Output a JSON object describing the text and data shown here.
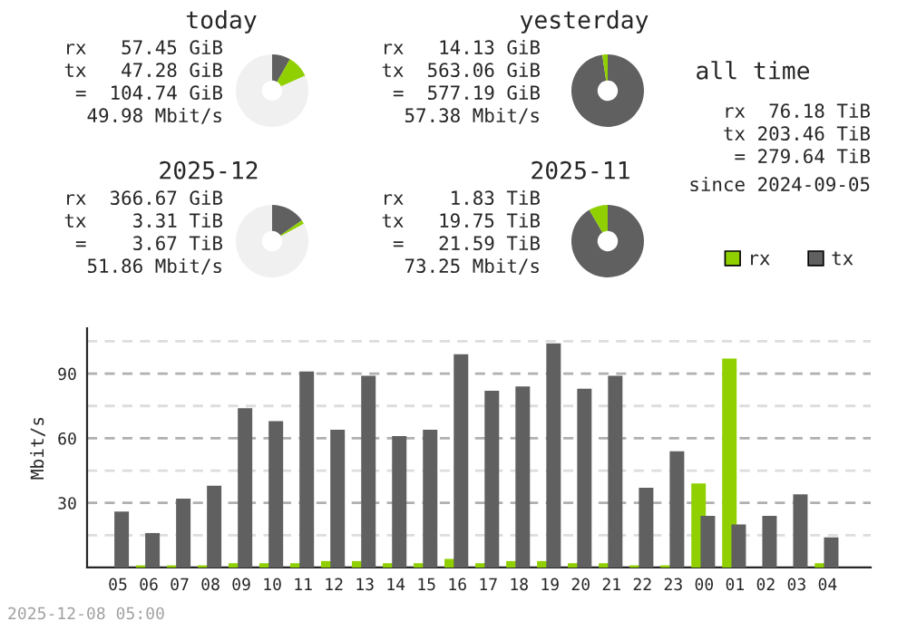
{
  "chart_data": [
    {
      "type": "donut",
      "title": "today",
      "categories": [
        null,
        null,
        null
      ],
      "values": [
        8.2,
        10.0,
        81.8
      ],
      "colors": [
        "#606060",
        "#90d000",
        "#f0f0f0"
      ],
      "annotations": [
        "rx 57.45 GiB",
        "tx 47.28 GiB",
        "= 104.74 GiB",
        "49.98 Mbit/s"
      ]
    },
    {
      "type": "donut",
      "title": "yesterday",
      "categories": [
        null,
        null
      ],
      "values": [
        97.6,
        2.4
      ],
      "colors": [
        "#606060",
        "#90d000"
      ],
      "annotations": [
        "rx 14.13 GiB",
        "tx 563.06 GiB",
        "= 577.19 GiB",
        "57.38 Mbit/s"
      ]
    },
    {
      "type": "donut",
      "title": "2025-12",
      "categories": [
        null,
        null,
        null
      ],
      "values": [
        15.3,
        1.7,
        83.0
      ],
      "colors": [
        "#606060",
        "#90d000",
        "#f0f0f0"
      ],
      "annotations": [
        "rx 366.67 GiB",
        "tx 3.31 TiB",
        "= 3.67 TiB",
        "51.86 Mbit/s"
      ]
    },
    {
      "type": "donut",
      "title": "2025-11",
      "categories": [
        null,
        null
      ],
      "values": [
        91.5,
        8.5
      ],
      "colors": [
        "#606060",
        "#90d000"
      ],
      "annotations": [
        "rx 1.83 TiB",
        "tx 19.75 TiB",
        "= 21.59 TiB",
        "73.25 Mbit/s"
      ]
    },
    {
      "type": "other",
      "title": "all time",
      "annotations": [
        "rx 76.18 TiB",
        "tx 203.46 TiB",
        "= 279.64 TiB",
        "since 2024-09-05"
      ]
    },
    {
      "type": "bar",
      "ylabel": "Mbit/s",
      "categories": [
        "05",
        "06",
        "07",
        "08",
        "09",
        "10",
        "11",
        "12",
        "13",
        "14",
        "15",
        "16",
        "17",
        "18",
        "19",
        "20",
        "21",
        "22",
        "23",
        "00",
        "01",
        "02",
        "03",
        "04"
      ],
      "series": [
        {
          "name": "rx",
          "color": "#90d000",
          "values": [
            0,
            1,
            1,
            1,
            2,
            2,
            2,
            3,
            3,
            2,
            2,
            4,
            2,
            3,
            3,
            2,
            2,
            1,
            1,
            39,
            97,
            0,
            0,
            2
          ]
        },
        {
          "name": "tx",
          "color": "#606060",
          "values": [
            26,
            16,
            32,
            38,
            74,
            68,
            91,
            64,
            89,
            61,
            64,
            99,
            82,
            84,
            104,
            83,
            89,
            37,
            54,
            24,
            20,
            24,
            34,
            14
          ]
        }
      ],
      "ylim": [
        0,
        111
      ],
      "yticks": [
        {
          "value": 15,
          "label": null
        },
        30,
        {
          "value": 45,
          "label": null
        },
        60,
        {
          "value": 75,
          "label": null
        },
        90,
        {
          "value": 105,
          "label": null
        }
      ],
      "grid": "y",
      "legend": "top right",
      "annotations": [
        "2025-12-08 05:00"
      ]
    }
  ]
}
